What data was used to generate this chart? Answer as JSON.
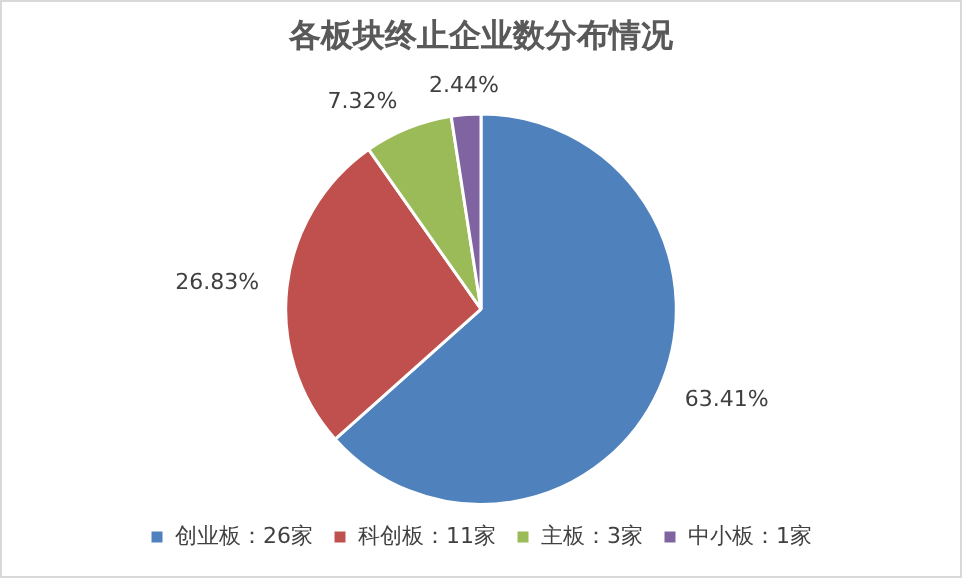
{
  "chart_data": {
    "type": "pie",
    "title": "各板块终止企业数分布情况",
    "categories": [
      "创业板：26家",
      "科创板：11家",
      "主板：3家",
      "中小板：1家"
    ],
    "values": [
      63.41,
      26.83,
      7.32,
      2.44
    ],
    "value_labels": [
      "63.41%",
      "26.83%",
      "7.32%",
      "2.44%"
    ],
    "colors": [
      "#4f81bd",
      "#c0504d",
      "#9bbb59",
      "#8064a2"
    ],
    "legend": "bottom"
  }
}
